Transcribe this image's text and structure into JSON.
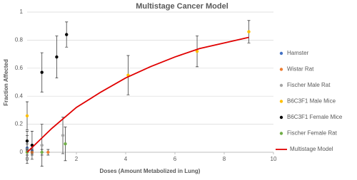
{
  "chart_data": {
    "type": "scatter",
    "title": "Multistage Cancer Model",
    "x_label": "Doses (Amount Metabolized in Lung)",
    "y_label": "Fraction Affected",
    "xlim": [
      0,
      10
    ],
    "xticks": [
      0,
      2,
      4,
      6,
      8,
      10
    ],
    "ylim": [
      0,
      1
    ],
    "yticks": [
      0,
      0.2,
      0.4,
      0.6,
      0.8,
      1
    ],
    "grid": true,
    "series": [
      {
        "name": "Hamster",
        "type": "scatter",
        "color": "#4472c4",
        "x": [
          0,
          0.2
        ],
        "values": [
          0.03,
          0.01
        ],
        "errors": [
          0.03,
          0.02
        ]
      },
      {
        "name": "Wistar Rat",
        "type": "scatter",
        "color": "#ed7d31",
        "x": [
          0,
          0.2,
          0.85
        ],
        "values": [
          0,
          0,
          0
        ],
        "errors": [
          0.02,
          0.02,
          0.02
        ]
      },
      {
        "name": "Fischer Male Rat",
        "type": "scatter",
        "color": "#a5a5a5",
        "x": [
          0,
          0.6,
          1.45
        ],
        "values": [
          0.02,
          0.05,
          0.12
        ],
        "errors": [
          0.1,
          0.15,
          0.13
        ]
      },
      {
        "name": "B6C3F1 Male Mice",
        "type": "scatter",
        "color": "#ffc000",
        "x": [
          0,
          4.1,
          6.9,
          9
        ],
        "values": [
          0.26,
          0.55,
          0.72,
          0.86
        ],
        "errors": [
          0.1,
          0.14,
          0.11,
          0.08
        ]
      },
      {
        "name": "B6C3F1 Female Mice",
        "type": "scatter",
        "color": "#000000",
        "x": [
          0,
          0.2,
          0.6,
          1.2,
          1.6
        ],
        "values": [
          0.08,
          0.05,
          0.57,
          0.68,
          0.84
        ],
        "errors": [
          0.07,
          0.1,
          0.14,
          0.15,
          0.09
        ]
      },
      {
        "name": "Fischer Female Rat",
        "type": "scatter",
        "color": "#70ad47",
        "x": [
          0,
          0.6,
          1.55
        ],
        "values": [
          0,
          0,
          0.06
        ],
        "errors": [
          0.02,
          0.02,
          0.12
        ]
      },
      {
        "name": "Multistage Model",
        "type": "line",
        "color": "#e00000",
        "x": [
          0,
          1,
          2,
          3,
          4,
          5,
          6,
          7,
          8,
          9
        ],
        "values": [
          0,
          0.17,
          0.32,
          0.43,
          0.53,
          0.61,
          0.68,
          0.74,
          0.78,
          0.82
        ]
      }
    ]
  }
}
